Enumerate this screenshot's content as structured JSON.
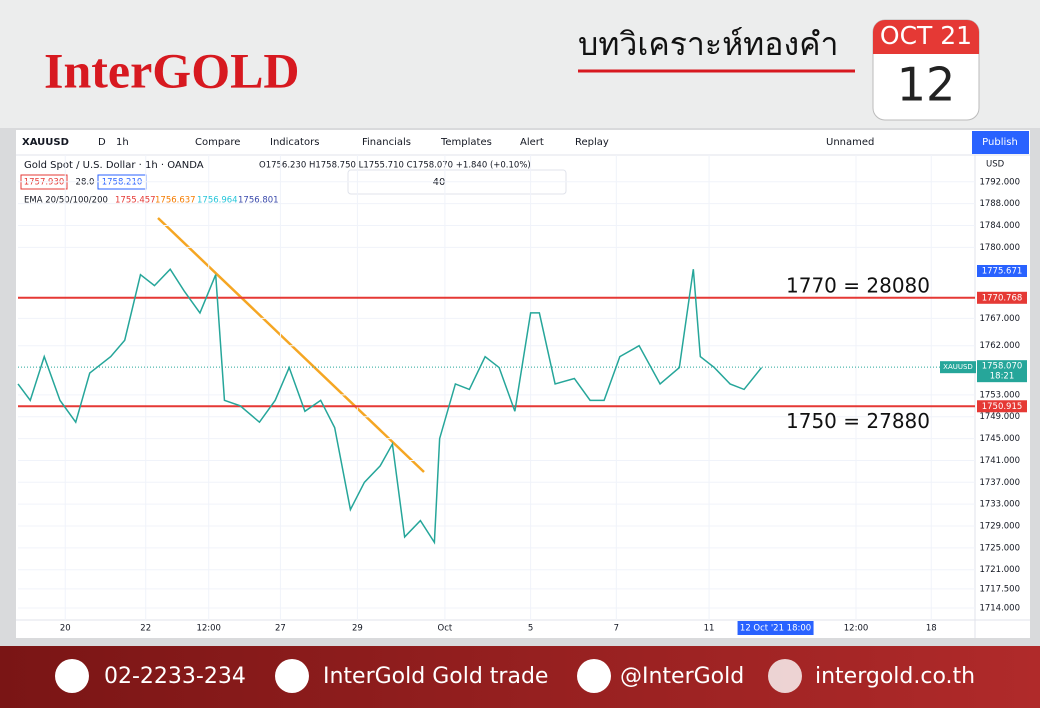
{
  "header": {
    "brand": "InterGOLD",
    "title": "บทวิเคราะห์ทองคำ",
    "date_month": "OCT 21",
    "date_day": "12"
  },
  "toolbar": {
    "symbol": "XAUUSD",
    "items": [
      "D",
      "1h",
      "Compare",
      "Indicators",
      "Financials",
      "Templates",
      "Alert",
      "Replay"
    ],
    "layout": "Unnamed",
    "publish": "Publish",
    "currency": "USD",
    "draw_size": "40"
  },
  "chart_data": {
    "type": "line",
    "legend_title": "Gold Spot / U.S. Dollar · 1h · OANDA",
    "ohlc": "O1756.230 H1758.750 L1755.710 C1758.070 +1.840 (+0.10%)",
    "bid": "1757.930",
    "spread": "28.0",
    "ask": "1758.210",
    "ema_label": "EMA 20/50/100/200",
    "ema_values": [
      "1755.457",
      "1756.637",
      "1756.964",
      "1756.801"
    ],
    "color": "#26a69a",
    "x": [
      0,
      7,
      15,
      24,
      33,
      41,
      53,
      61,
      70,
      78,
      87,
      95,
      104,
      113,
      118,
      127,
      138,
      147,
      155,
      164,
      173,
      181,
      190,
      198,
      207,
      214,
      221,
      230,
      238,
      241,
      250,
      258,
      267,
      275,
      284,
      293,
      298,
      307,
      318,
      327,
      335,
      344,
      355,
      367,
      378,
      386,
      390,
      398,
      407,
      415,
      425
    ],
    "values": [
      1755,
      1752,
      1760,
      1752,
      1748,
      1757,
      1760,
      1763,
      1775,
      1773,
      1776,
      1772,
      1768,
      1775,
      1752,
      1751,
      1748,
      1752,
      1758,
      1750,
      1752,
      1747,
      1732,
      1737,
      1740,
      1744,
      1727,
      1730,
      1726,
      1745,
      1755,
      1754,
      1760,
      1758,
      1750,
      1768,
      1768,
      1755,
      1756,
      1752,
      1752,
      1760,
      1762,
      1755,
      1758,
      1776,
      1760,
      1758,
      1755,
      1754,
      1758
    ],
    "xlim": [
      0,
      547
    ],
    "xticks": [
      {
        "value": 27,
        "label": "20"
      },
      {
        "value": 73,
        "label": "22"
      },
      {
        "value": 109,
        "label": "12:00"
      },
      {
        "value": 150,
        "label": "27"
      },
      {
        "value": 194,
        "label": "29"
      },
      {
        "value": 244,
        "label": "Oct"
      },
      {
        "value": 293,
        "label": "5"
      },
      {
        "value": 342,
        "label": "7"
      },
      {
        "value": 395,
        "label": "11"
      },
      {
        "value": 479,
        "label": "12:00"
      },
      {
        "value": 522,
        "label": "18"
      }
    ],
    "cursor_x": {
      "value": 433,
      "label": "12 Oct '21  18:00"
    },
    "ylim": [
      1711.8,
      1796.9
    ],
    "yticks": [
      {
        "value": 1792,
        "label": "1792.000"
      },
      {
        "value": 1788,
        "label": "1788.000"
      },
      {
        "value": 1784,
        "label": "1784.000"
      },
      {
        "value": 1780,
        "label": "1780.000"
      },
      {
        "value": 1767,
        "label": "1767.000"
      },
      {
        "value": 1762,
        "label": "1762.000"
      },
      {
        "value": 1753,
        "label": "1753.000"
      },
      {
        "value": 1749,
        "label": "1749.000"
      },
      {
        "value": 1745,
        "label": "1745.000"
      },
      {
        "value": 1741,
        "label": "1741.000"
      },
      {
        "value": 1737,
        "label": "1737.000"
      },
      {
        "value": 1733,
        "label": "1733.000"
      },
      {
        "value": 1729,
        "label": "1729.000"
      },
      {
        "value": 1725,
        "label": "1725.000"
      },
      {
        "value": 1721,
        "label": "1721.000"
      },
      {
        "value": 1717.5,
        "label": "1717.500"
      },
      {
        "value": 1714,
        "label": "1714.000"
      }
    ],
    "levels": [
      {
        "value": 1770.768,
        "note": "1770 = 28080",
        "color": "#e53935"
      },
      {
        "value": 1750.915,
        "note": "1750 = 27880",
        "color": "#e53935"
      }
    ],
    "high_marker": 1775.671,
    "last_price": {
      "value": 1758.07,
      "label": "1758.070",
      "symbol": "XAUUSD",
      "countdown": "18:21"
    }
  },
  "footer": {
    "phone": "02-2233-234",
    "facebook": "InterGold Gold trade",
    "line": "@InterGold",
    "web": "intergold.co.th"
  }
}
